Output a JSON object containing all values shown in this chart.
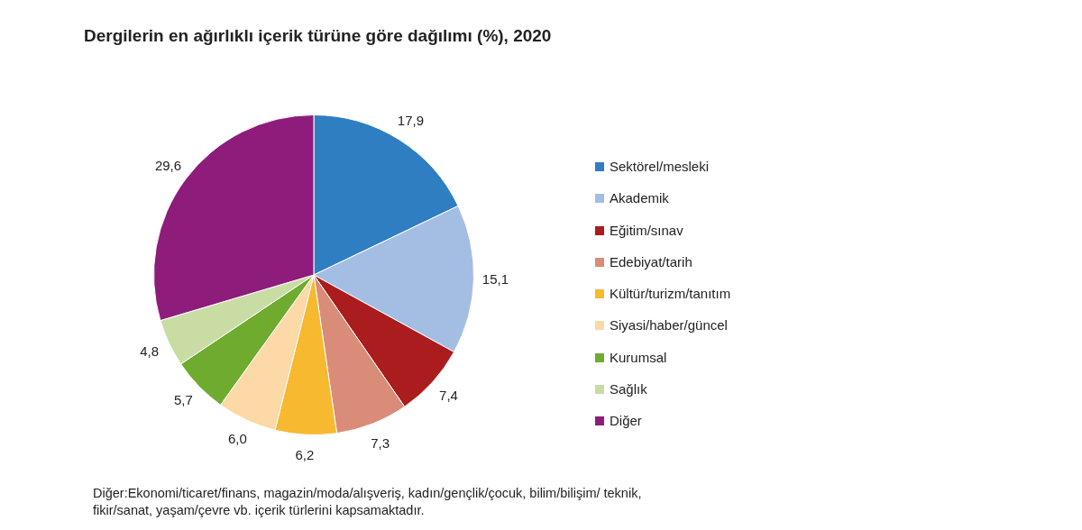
{
  "chart_data": {
    "type": "pie",
    "title": "Dergilerin en ağırlıklı içerik türüne göre dağılımı (%), 2020",
    "categories": [
      "Sektörel/mesleki",
      "Akademik",
      "Eğitim/sınav",
      "Edebiyat/tarih",
      "Kültür/turizm/tanıtım",
      "Siyasi/haber/güncel",
      "Kurumsal",
      "Sağlık",
      "Diğer"
    ],
    "values": [
      17.9,
      15.1,
      7.4,
      7.3,
      6.2,
      6.0,
      5.7,
      4.8,
      29.6
    ],
    "value_labels": [
      "17,9",
      "15,1",
      "7,4",
      "7,3",
      "6,2",
      "6,0",
      "5,7",
      "4,8",
      "29,6"
    ],
    "colors": [
      "#2e7ec1",
      "#a4bee3",
      "#ab1c1f",
      "#d98c78",
      "#f6b92f",
      "#fcd9a6",
      "#6fab2e",
      "#c9dca4",
      "#8e1c7b"
    ],
    "legend": "right",
    "annotations": [
      "Diğer:Ekonomi/ticaret/finans, magazin/moda/alışveriş, kadın/gençlik/çocuk, bilim/bilişim/ teknik, fikir/sanat,  yaşam/çevre vb. içerik türlerini kapsamaktadır."
    ]
  }
}
